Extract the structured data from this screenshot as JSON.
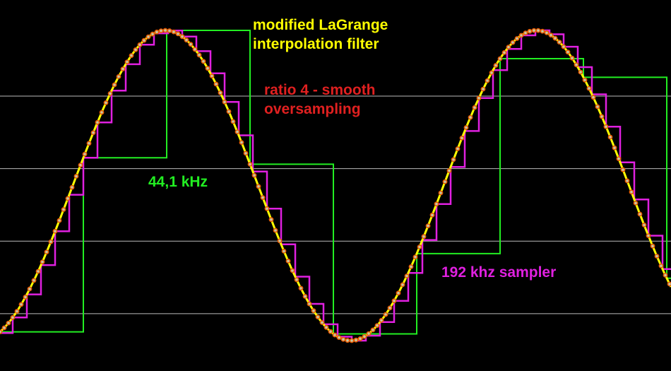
{
  "chart_data": {
    "type": "line",
    "title": "",
    "xlabel": "",
    "ylabel": "",
    "grid": true,
    "legend": "none",
    "xlim": [
      0,
      950
    ],
    "ylim": [
      -1.1,
      1.1
    ],
    "gridlines_y": [
      -0.76,
      -0.33,
      0.1,
      0.53
    ],
    "annotations": [
      {
        "id": "title",
        "lines": [
          "modified LaGrange",
          "interpolation filter"
        ],
        "color": "#ffff00"
      },
      {
        "id": "ratio",
        "lines": [
          "ratio 4 - smooth",
          "oversampling"
        ],
        "color": "#e02020"
      },
      {
        "id": "44k",
        "lines": [
          "44,1 kHz"
        ],
        "color": "#22ee22"
      },
      {
        "id": "192k",
        "lines": [
          "192 khz sampler"
        ],
        "color": "#e020e0"
      }
    ],
    "signal": {
      "amplitude": 0.92,
      "period": 525,
      "phase": 103
    },
    "series": [
      {
        "key": "sine",
        "style": "smooth",
        "step": 0,
        "offset": 0,
        "color": "#ffff00",
        "width": 3
      },
      {
        "key": "sampler_44k",
        "style": "step",
        "step": 118,
        "offset": 0,
        "color": "#22ee22",
        "width": 2
      },
      {
        "key": "sampler_192k",
        "style": "step",
        "step": 20,
        "offset": 18,
        "color": "#e020e0",
        "width": 2.5
      },
      {
        "key": "oversampled_points",
        "style": "dots",
        "step": 6,
        "offset": 0,
        "color": "#ee6600",
        "width": 0
      }
    ]
  },
  "colors": {
    "background": "#000000",
    "grid": "#bbbbbb",
    "dot_fill": "#c8c8a0",
    "dot_stroke": "#e85a00"
  }
}
